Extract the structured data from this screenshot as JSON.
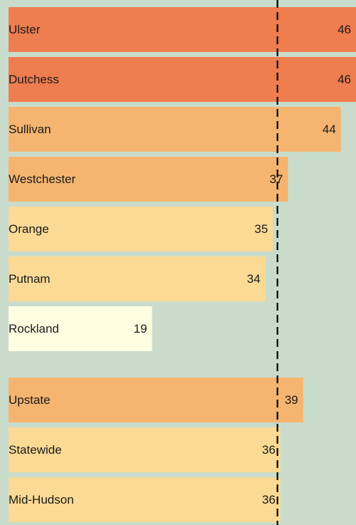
{
  "chart_data": {
    "type": "bar",
    "orientation": "horizontal",
    "categories": [
      "Ulster",
      "Dutchess",
      "Sullivan",
      "Westchester",
      "Orange",
      "Putnam",
      "Rockland",
      "Upstate",
      "Statewide",
      "Mid-Hudson"
    ],
    "values": [
      46,
      46,
      44,
      37,
      35,
      34,
      19,
      39,
      36,
      36
    ],
    "colors": [
      "#ee7d50",
      "#ee7d50",
      "#f5b470",
      "#f5b470",
      "#fbda95",
      "#fbda95",
      "#fefee0",
      "#f5b470",
      "#fbda95",
      "#fbda95"
    ],
    "xlim": [
      0,
      46
    ],
    "reference_line": 35.6,
    "reference_color": "#000000"
  }
}
